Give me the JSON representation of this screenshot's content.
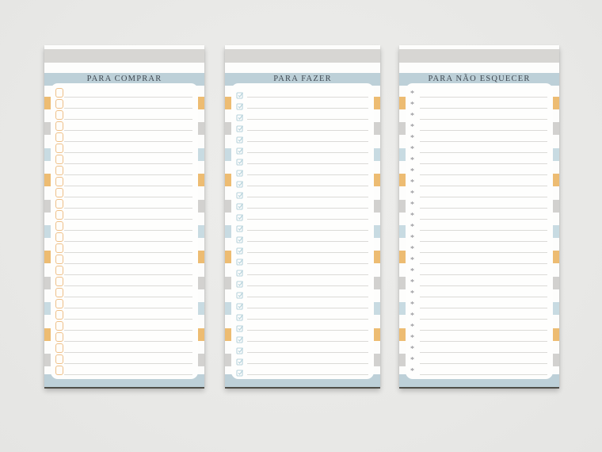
{
  "page": {
    "description": "Mockup of three striped printable list notepads",
    "background_color": "#e9e9e7"
  },
  "palette": {
    "card_white": "#fdfdfc",
    "band_blue": "#bdd0d8",
    "top_stripe_gray": "#d7d6d3",
    "tab_orange": "#edbc72",
    "tab_gray": "#d2d1cf",
    "tab_blue": "#c8dbe2",
    "row_line": "#dbdad7",
    "checkbox_orange": "#eec089",
    "checkmark_blue": "#b7d3dc",
    "asterisk_gray": "#85858a",
    "title_text": "#3e4750",
    "bottom_edge": "#4a4944"
  },
  "cards": [
    {
      "title": "PARA COMPRAR",
      "marker": "checkbox",
      "marker_icon": "checkbox-outline-icon",
      "row_count": 26
    },
    {
      "title": "PARA FAZER",
      "marker": "checked-checkbox",
      "marker_icon": "checked-checkbox-icon",
      "row_count": 26
    },
    {
      "title": "PARA NÃO ESQUECER",
      "marker": "asterisk",
      "marker_icon": "asterisk-bullet-icon",
      "row_count": 26
    }
  ],
  "edge_tabs": {
    "colors_cycle": [
      "tab_orange",
      "tab_gray",
      "tab_blue"
    ],
    "per_side": 11
  }
}
